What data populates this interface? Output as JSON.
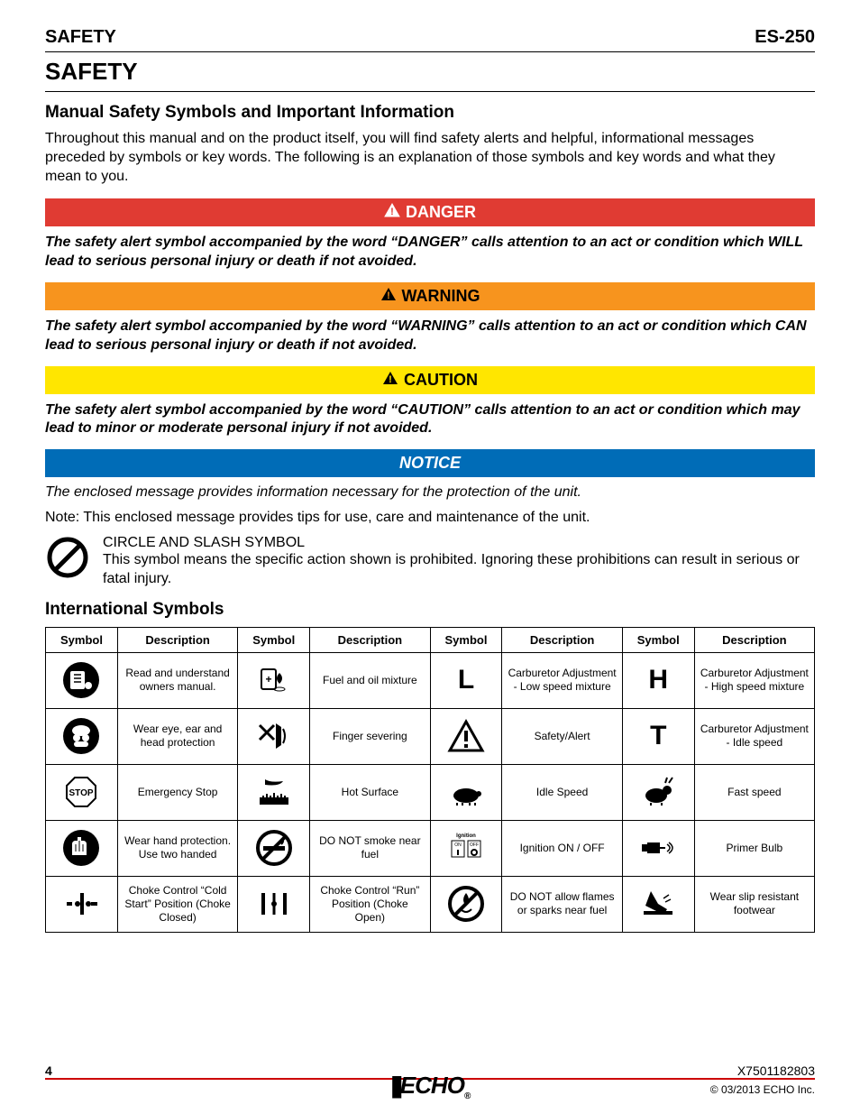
{
  "header": {
    "left": "SAFETY",
    "right": "ES-250"
  },
  "title": "SAFETY",
  "section1_heading": "Manual Safety Symbols and Important Information",
  "intro": "Throughout this manual and on the product itself, you will find safety alerts and helpful, informational messages preceded by symbols or key words. The following is an explanation of those symbols and key words and what they mean to you.",
  "alerts": {
    "danger": {
      "label": "DANGER",
      "bg": "#e03b33",
      "fg": "#ffffff",
      "text": "The safety alert symbol accompanied by the word “DANGER” calls attention to an act or condition which WILL lead to serious personal injury or death if not avoided."
    },
    "warning": {
      "label": "WARNING",
      "bg": "#f7941e",
      "fg": "#000000",
      "text": "The safety alert symbol accompanied by the word “WARNING” calls attention to an act or condition which CAN lead to serious personal injury or death if not avoided."
    },
    "caution": {
      "label": "CAUTION",
      "bg": "#ffe600",
      "fg": "#000000",
      "text": "The safety alert symbol accompanied by the word “CAUTION” calls attention to an act or condition which may lead to minor or moderate personal injury if not avoided."
    },
    "notice": {
      "label": "NOTICE",
      "bg": "#006cb7",
      "fg": "#ffffff",
      "text": "The enclosed message provides information necessary for the protection of the unit."
    }
  },
  "note": "Note:  This enclosed message provides tips for use, care and maintenance of the unit.",
  "circle_slash": {
    "title": "CIRCLE AND SLASH SYMBOL",
    "desc": "This symbol means the specific action shown is prohibited. Ignoring these prohibitions can result in serious or fatal injury."
  },
  "section2_heading": "International Symbols",
  "table": {
    "headers": [
      "Symbol",
      "Description",
      "Symbol",
      "Description",
      "Symbol",
      "Description",
      "Symbol",
      "Description"
    ],
    "rows": [
      [
        {
          "icon": "manual",
          "desc": "Read and understand owners manual."
        },
        {
          "icon": "fuel-oil",
          "desc": "Fuel and oil mixture"
        },
        {
          "icon": "L",
          "desc": "Carburetor Adjustment - Low speed mixture"
        },
        {
          "icon": "H",
          "desc": "Carburetor Adjustment - High speed mixture"
        }
      ],
      [
        {
          "icon": "ppe",
          "desc": "Wear eye, ear and head protection"
        },
        {
          "icon": "sever",
          "desc": "Finger severing"
        },
        {
          "icon": "alert",
          "desc": "Safety/Alert"
        },
        {
          "icon": "T",
          "desc": "Carburetor Adjustment - Idle speed"
        }
      ],
      [
        {
          "icon": "stop",
          "desc": "Emergency Stop"
        },
        {
          "icon": "hot",
          "desc": "Hot Surface"
        },
        {
          "icon": "turtle",
          "desc": "Idle Speed"
        },
        {
          "icon": "rabbit",
          "desc": "Fast speed"
        }
      ],
      [
        {
          "icon": "gloves",
          "desc": "Wear hand protection. Use two handed"
        },
        {
          "icon": "nosmoke",
          "desc": "DO NOT smoke near fuel"
        },
        {
          "icon": "ignition",
          "desc": "Ignition ON / OFF"
        },
        {
          "icon": "primer",
          "desc": "Primer Bulb"
        }
      ],
      [
        {
          "icon": "choke-closed",
          "desc": "Choke Control “Cold Start” Position (Choke Closed)"
        },
        {
          "icon": "choke-open",
          "desc": "Choke Control “Run” Position (Choke Open)"
        },
        {
          "icon": "noflame",
          "desc": "DO NOT allow flames or sparks near fuel"
        },
        {
          "icon": "boots",
          "desc": "Wear slip resistant footwear"
        }
      ]
    ]
  },
  "footer": {
    "page": "4",
    "docnum": "X7501182803",
    "logo": "ECHO",
    "copyright": "© 03/2013 ECHO Inc."
  },
  "colors": {
    "rule_red": "#c00000"
  }
}
